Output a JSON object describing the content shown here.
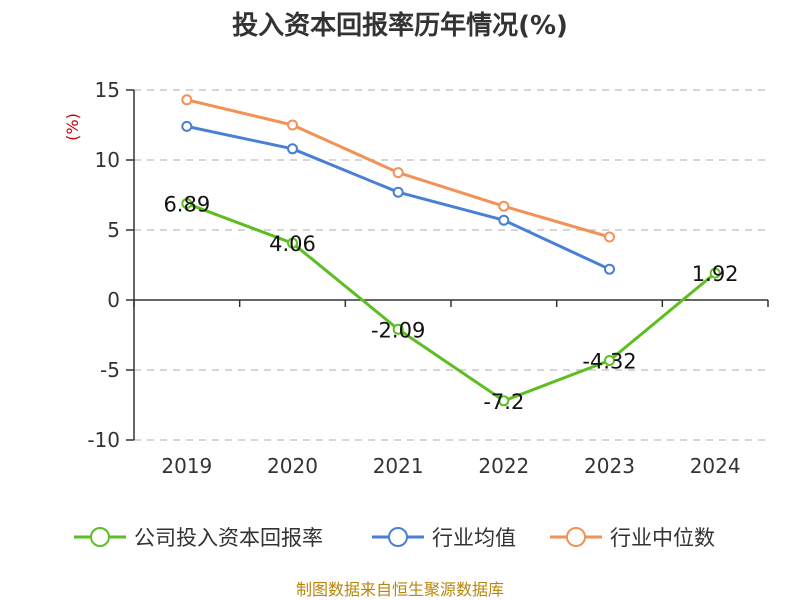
{
  "chart_data": {
    "type": "line",
    "title": "投入资本回报率历年情况(%)",
    "ylabel": "(%)",
    "categories": [
      "2019",
      "2020",
      "2021",
      "2022",
      "2023",
      "2024"
    ],
    "ylim": [
      -10,
      15
    ],
    "yticks": [
      "15",
      "10",
      "5",
      "0",
      "-5",
      "-10"
    ],
    "grid": "horizontal-dashed",
    "legend_position": "bottom",
    "series": [
      {
        "name": "公司投入资本回报率",
        "color": "#5dbe22",
        "values": [
          6.89,
          4.06,
          -2.09,
          -7.2,
          -4.32,
          1.92
        ],
        "labels": [
          "6.89",
          "4.06",
          "-2.09",
          "-7.2",
          "-4.32",
          "1.92"
        ]
      },
      {
        "name": "行业均值",
        "color": "#4a7fd6",
        "values": [
          12.4,
          10.8,
          7.7,
          5.7,
          2.2,
          null
        ]
      },
      {
        "name": "行业中位数",
        "color": "#f39256",
        "values": [
          14.3,
          12.5,
          9.1,
          6.7,
          4.5,
          null
        ]
      }
    ]
  },
  "source_text": "制图数据来自恒生聚源数据库"
}
